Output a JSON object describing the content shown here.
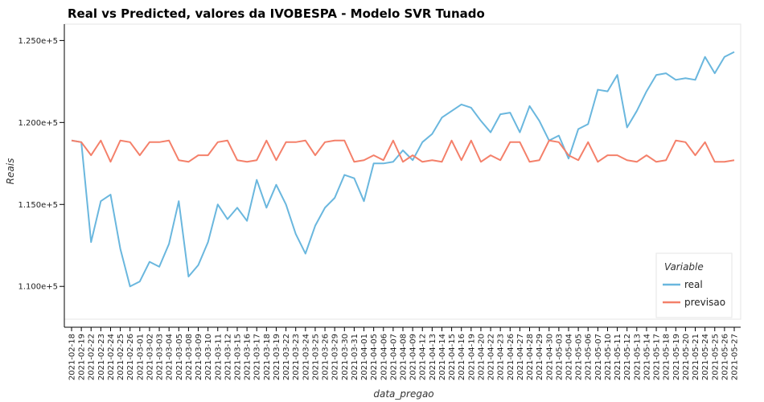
{
  "chart_data": {
    "type": "line",
    "title": "Real vs Predicted, valores da IVOBESPA - Modelo SVR Tunado",
    "xlabel": "data_pregao",
    "ylabel": "Reais",
    "ylim": [
      108000,
      126000
    ],
    "yticks": [
      110000,
      115000,
      120000,
      125000
    ],
    "ytick_labels": [
      "1.100e+5",
      "1.150e+5",
      "1.200e+5",
      "1.250e+5"
    ],
    "grid": false,
    "legend": {
      "title": "Variable",
      "position": "bottom-right"
    },
    "colors": {
      "real": "#6ab7de",
      "previsao": "#f4806a"
    },
    "x": [
      "2021-02-18",
      "2021-02-19",
      "2021-02-22",
      "2021-02-23",
      "2021-02-24",
      "2021-02-25",
      "2021-02-26",
      "2021-03-01",
      "2021-03-02",
      "2021-03-03",
      "2021-03-04",
      "2021-03-05",
      "2021-03-08",
      "2021-03-09",
      "2021-03-10",
      "2021-03-11",
      "2021-03-12",
      "2021-03-15",
      "2021-03-16",
      "2021-03-17",
      "2021-03-18",
      "2021-03-19",
      "2021-03-22",
      "2021-03-23",
      "2021-03-24",
      "2021-03-25",
      "2021-03-26",
      "2021-03-29",
      "2021-03-30",
      "2021-03-31",
      "2021-04-01",
      "2021-04-05",
      "2021-04-06",
      "2021-04-07",
      "2021-04-08",
      "2021-04-09",
      "2021-04-12",
      "2021-04-13",
      "2021-04-14",
      "2021-04-15",
      "2021-04-16",
      "2021-04-19",
      "2021-04-20",
      "2021-04-22",
      "2021-04-23",
      "2021-04-26",
      "2021-04-27",
      "2021-04-28",
      "2021-04-29",
      "2021-04-30",
      "2021-05-03",
      "2021-05-04",
      "2021-05-05",
      "2021-05-06",
      "2021-05-07",
      "2021-05-10",
      "2021-05-11",
      "2021-05-12",
      "2021-05-13",
      "2021-05-14",
      "2021-05-17",
      "2021-05-18",
      "2021-05-19",
      "2021-05-20",
      "2021-05-21",
      "2021-05-24",
      "2021-05-25",
      "2021-05-26",
      "2021-05-27"
    ],
    "series": [
      {
        "name": "real",
        "values": [
          118900,
          118800,
          112700,
          115200,
          115600,
          112300,
          110000,
          110300,
          111500,
          111200,
          112600,
          115200,
          110600,
          111300,
          112700,
          115000,
          114100,
          114800,
          114000,
          116500,
          114800,
          116200,
          115000,
          113200,
          112000,
          113700,
          114800,
          115400,
          116800,
          116600,
          115200,
          117500,
          117500,
          117600,
          118300,
          117700,
          118800,
          119300,
          120300,
          120700,
          121100,
          120900,
          120100,
          119400,
          120500,
          120600,
          119400,
          121000,
          120100,
          118900,
          119200,
          117800,
          119600,
          119900,
          122000,
          121900,
          122900,
          119700,
          120700,
          121900,
          122900,
          123000,
          122600,
          122700,
          122600,
          124000,
          123000,
          124000,
          124300
        ]
      },
      {
        "name": "previsao",
        "values": [
          118900,
          118800,
          118000,
          118900,
          117600,
          118900,
          118800,
          118000,
          118800,
          118800,
          118900,
          117700,
          117600,
          118000,
          118000,
          118800,
          118900,
          117700,
          117600,
          117700,
          118900,
          117700,
          118800,
          118800,
          118900,
          118000,
          118800,
          118900,
          118900,
          117600,
          117700,
          118000,
          117700,
          118900,
          117600,
          118000,
          117600,
          117700,
          117600,
          118900,
          117700,
          118900,
          117600,
          118000,
          117700,
          118800,
          118800,
          117600,
          117700,
          118900,
          118800,
          118000,
          117700,
          118800,
          117600,
          118000,
          118000,
          117700,
          117600,
          118000,
          117600,
          117700,
          118900,
          118800,
          118000,
          118800,
          117600,
          117600,
          117700
        ]
      }
    ]
  }
}
